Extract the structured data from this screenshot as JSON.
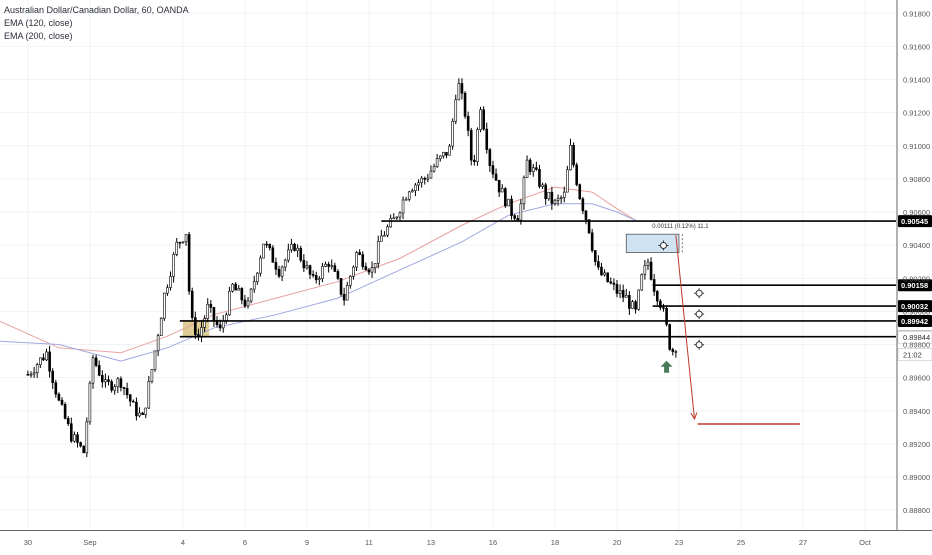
{
  "legend": {
    "symbol": "Australian Dollar/Canadian Dollar, 60, OANDA",
    "ema_fast": "EMA (120, close)",
    "ema_slow": "EMA (200, close)"
  },
  "colors": {
    "candle": "#000000",
    "ema_fast": "#e8a0a0",
    "ema_slow": "#a0a8e0",
    "level_line": "#000000",
    "projection": "#c0392b",
    "range_box": "#cfe3f3",
    "zone": "#d8c483",
    "marker": "#4a7c59"
  },
  "chart_data": {
    "type": "candlestick",
    "title": "Australian Dollar/Canadian Dollar, 60, OANDA",
    "ylim": [
      0.8868,
      0.9188
    ],
    "y_ticks": [
      "0.91800",
      "0.91600",
      "0.91400",
      "0.91200",
      "0.91000",
      "0.90800",
      "0.90600",
      "0.90400",
      "0.90200",
      "0.90000",
      "0.89800",
      "0.89600",
      "0.89400",
      "0.89200",
      "0.89000",
      "0.88800"
    ],
    "x_ticks": [
      "30",
      "Sep",
      "4",
      "6",
      "9",
      "11",
      "13",
      "16",
      "18",
      "20",
      "23",
      "25",
      "27",
      "Oct"
    ],
    "x_tick_positions": [
      0,
      2,
      5,
      7,
      9,
      11,
      13,
      15,
      17,
      19,
      21,
      23,
      25,
      27
    ],
    "x_range": [
      -0.9,
      28.0
    ],
    "price_path": [
      [
        0.0,
        0.8962
      ],
      [
        0.6,
        0.8975
      ],
      [
        1.0,
        0.8945
      ],
      [
        1.4,
        0.8925
      ],
      [
        1.8,
        0.8915
      ],
      [
        2.1,
        0.8972
      ],
      [
        2.5,
        0.8955
      ],
      [
        3.0,
        0.8958
      ],
      [
        3.4,
        0.8942
      ],
      [
        3.7,
        0.8935
      ],
      [
        4.0,
        0.8965
      ],
      [
        4.4,
        0.901
      ],
      [
        4.8,
        0.904
      ],
      [
        5.1,
        0.9048
      ],
      [
        5.25,
        0.8995
      ],
      [
        5.5,
        0.8985
      ],
      [
        5.8,
        0.9002
      ],
      [
        6.2,
        0.8988
      ],
      [
        6.6,
        0.9015
      ],
      [
        7.1,
        0.9003
      ],
      [
        7.6,
        0.9042
      ],
      [
        8.1,
        0.9025
      ],
      [
        8.6,
        0.904
      ],
      [
        9.2,
        0.9018
      ],
      [
        9.7,
        0.903
      ],
      [
        10.2,
        0.9008
      ],
      [
        10.6,
        0.9035
      ],
      [
        11.1,
        0.9025
      ],
      [
        11.4,
        0.9045
      ],
      [
        11.8,
        0.9055
      ],
      [
        12.3,
        0.9075
      ],
      [
        12.8,
        0.908
      ],
      [
        13.2,
        0.909
      ],
      [
        13.6,
        0.9098
      ],
      [
        13.85,
        0.914
      ],
      [
        14.1,
        0.912
      ],
      [
        14.35,
        0.9085
      ],
      [
        14.6,
        0.9125
      ],
      [
        14.9,
        0.909
      ],
      [
        15.2,
        0.9075
      ],
      [
        15.6,
        0.906
      ],
      [
        15.85,
        0.9058
      ],
      [
        16.1,
        0.909
      ],
      [
        16.4,
        0.9082
      ],
      [
        16.7,
        0.907
      ],
      [
        17.0,
        0.9065
      ],
      [
        17.3,
        0.907
      ],
      [
        17.5,
        0.9098
      ],
      [
        17.8,
        0.907
      ],
      [
        18.1,
        0.905
      ],
      [
        18.35,
        0.9025
      ],
      [
        18.7,
        0.9018
      ],
      [
        19.0,
        0.9012
      ],
      [
        19.3,
        0.9008
      ],
      [
        19.6,
        0.8999
      ],
      [
        19.8,
        0.902
      ],
      [
        20.0,
        0.903
      ],
      [
        20.2,
        0.9015
      ],
      [
        20.45,
        0.9003
      ],
      [
        20.6,
        0.899
      ],
      [
        20.75,
        0.8975
      ],
      [
        21.0,
        0.8983
      ]
    ],
    "ema_120": [
      [
        -0.9,
        0.8994
      ],
      [
        1.0,
        0.8978
      ],
      [
        3.0,
        0.8975
      ],
      [
        4.5,
        0.8985
      ],
      [
        6.0,
        0.8998
      ],
      [
        8.0,
        0.9008
      ],
      [
        10.0,
        0.9018
      ],
      [
        12.0,
        0.9032
      ],
      [
        14.0,
        0.9052
      ],
      [
        15.5,
        0.9065
      ],
      [
        17.0,
        0.9075
      ],
      [
        18.2,
        0.9072
      ],
      [
        19.0,
        0.9062
      ],
      [
        19.6,
        0.9055
      ]
    ],
    "ema_200": [
      [
        -0.9,
        0.8982
      ],
      [
        1.0,
        0.898
      ],
      [
        3.0,
        0.897
      ],
      [
        4.5,
        0.8978
      ],
      [
        6.0,
        0.899
      ],
      [
        8.0,
        0.8998
      ],
      [
        10.0,
        0.9008
      ],
      [
        12.0,
        0.9025
      ],
      [
        14.0,
        0.9042
      ],
      [
        15.5,
        0.9058
      ],
      [
        17.0,
        0.9065
      ],
      [
        18.2,
        0.9065
      ],
      [
        19.0,
        0.906
      ],
      [
        19.6,
        0.9055
      ]
    ],
    "horizontal_levels": [
      {
        "value": 0.90545,
        "label": "0.90545",
        "x_start": 11.4
      },
      {
        "value": 0.90158,
        "label": "0.90158",
        "x_start": 20.15
      },
      {
        "value": 0.90032,
        "label": "0.90032",
        "x_start": 20.15
      },
      {
        "value": 0.89942,
        "label": "0.89942",
        "x_start": 4.9
      },
      {
        "value": 0.89847,
        "label": "0.89847",
        "x_start": 4.9
      }
    ],
    "axis_labels": [
      {
        "value": 0.89844,
        "label": "0.89844"
      },
      {
        "value": 0.8974,
        "label": "21:02"
      }
    ],
    "target_level": {
      "value": 0.8932,
      "x_start": 21.6,
      "x_end": 24.9
    },
    "projection_arrow": {
      "from": [
        20.9,
        0.9046
      ],
      "to": [
        21.5,
        0.8935
      ]
    },
    "range_box": {
      "x_start": 19.3,
      "x_end": 21.0,
      "y_low": 0.90355,
      "y_high": 0.90466,
      "label": "0.00111 (0.12%) 11.1"
    },
    "zone": {
      "x_start": 5.0,
      "x_end": 5.85,
      "y_low": 0.89847,
      "y_high": 0.89942
    },
    "up_marker": {
      "x": 20.6,
      "y": 0.8975
    }
  }
}
